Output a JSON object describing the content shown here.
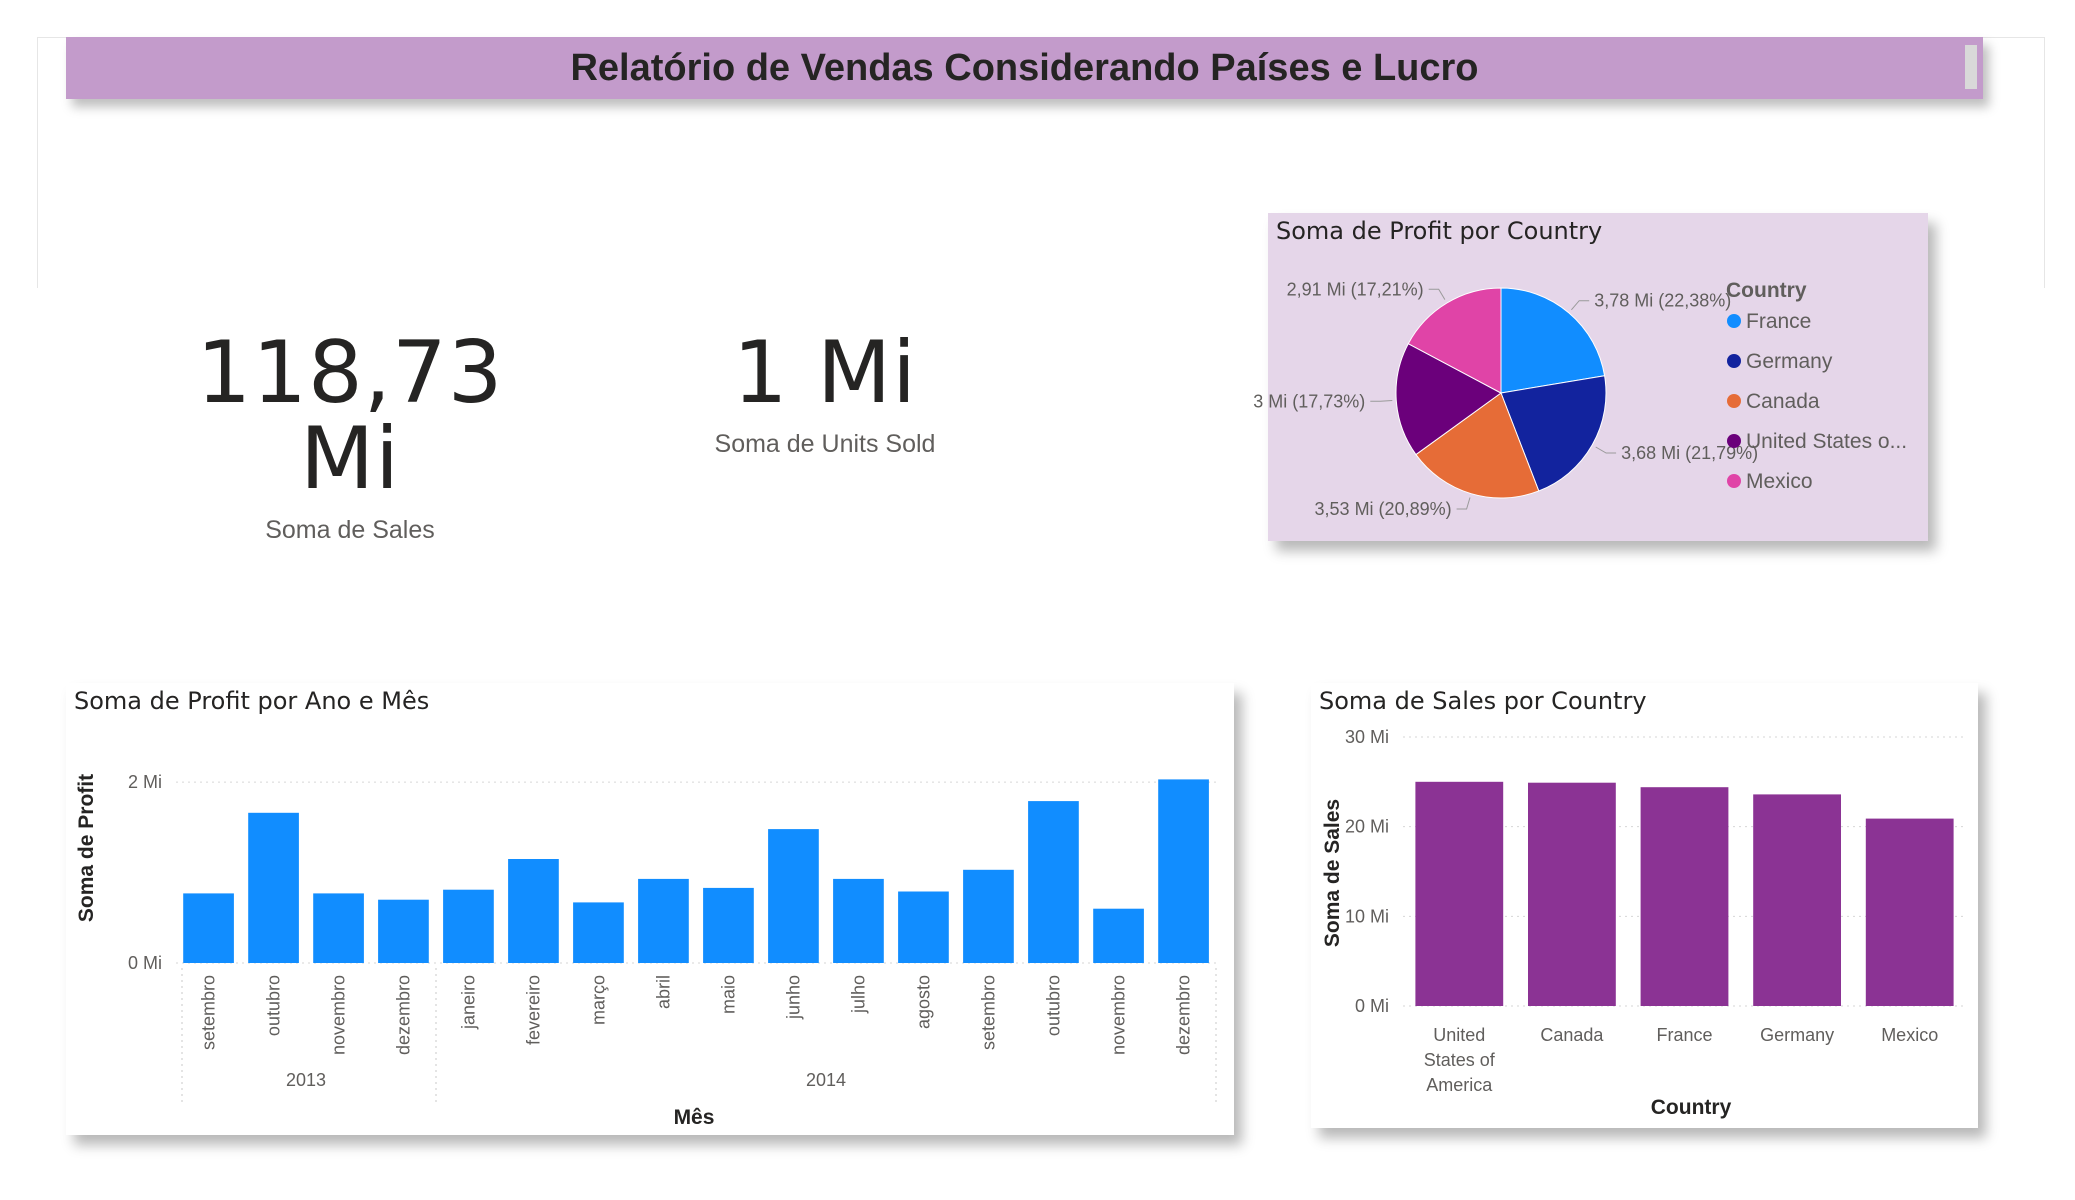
{
  "header": {
    "title": "Relatório de Vendas Considerando Países e Lucro"
  },
  "kpis": [
    {
      "value": "118,73 Mi",
      "label": "Soma de  Sales"
    },
    {
      "value": "1 Mi",
      "label": "Soma de Units Sold"
    }
  ],
  "colors": {
    "title_bar": "#c39bcb",
    "pie_card_bg": "#e5d6e9",
    "bar_blue": "#118dff",
    "bar_purple": "#8b3394"
  },
  "chart_data": [
    {
      "type": "pie",
      "title": "Soma de Profit por Country",
      "legend_title": "Country",
      "legend_placement": "right",
      "slices": [
        {
          "name": "France",
          "legend_label": "France",
          "value": 3.78,
          "pct": 22.38,
          "label": "3,78 Mi (22,38%)",
          "color": "#118dff"
        },
        {
          "name": "Germany",
          "legend_label": "Germany",
          "value": 3.68,
          "pct": 21.79,
          "label": "3,68 Mi (21,79%)",
          "color": "#12239e"
        },
        {
          "name": "Canada",
          "legend_label": "Canada",
          "value": 3.53,
          "pct": 20.89,
          "label": "3,53 Mi (20,89%)",
          "color": "#e66c37"
        },
        {
          "name": "United States of America",
          "legend_label": "United States o...",
          "value": 3.0,
          "pct": 17.73,
          "label": "3 Mi (17,73%)",
          "color": "#6b007b"
        },
        {
          "name": "Mexico",
          "legend_label": "Mexico",
          "value": 2.91,
          "pct": 17.21,
          "label": "2,91 Mi (17,21%)",
          "color": "#e044a7"
        }
      ]
    },
    {
      "type": "bar",
      "title": "Soma de Profit por Ano e Mês",
      "xlabel": "Mês",
      "ylabel": "Soma de Profit",
      "ylim": [
        0,
        2.2
      ],
      "yticks": [
        {
          "value": 0,
          "label": "0 Mi"
        },
        {
          "value": 2,
          "label": "2 Mi"
        }
      ],
      "grid": true,
      "categories": [
        "setembro",
        "outubro",
        "novembro",
        "dezembro",
        "janeiro",
        "fevereiro",
        "março",
        "abril",
        "maio",
        "junho",
        "julho",
        "agosto",
        "setembro",
        "outubro",
        "novembro",
        "dezembro"
      ],
      "values": [
        0.77,
        1.66,
        0.77,
        0.7,
        0.81,
        1.15,
        0.67,
        0.93,
        0.83,
        1.48,
        0.93,
        0.79,
        1.03,
        1.79,
        0.6,
        2.03
      ],
      "groups": [
        {
          "label": "2013",
          "count": 4
        },
        {
          "label": "2014",
          "count": 12
        }
      ]
    },
    {
      "type": "bar",
      "title": "Soma de Sales por Country",
      "xlabel": "Country",
      "ylabel": "Soma de Sales",
      "ylim": [
        0,
        30
      ],
      "yticks": [
        {
          "value": 0,
          "label": "0 Mi"
        },
        {
          "value": 10,
          "label": "10 Mi"
        },
        {
          "value": 20,
          "label": "20 Mi"
        },
        {
          "value": 30,
          "label": "30 Mi"
        }
      ],
      "grid": true,
      "categories": [
        "United States of America",
        "Canada",
        "France",
        "Germany",
        "Mexico"
      ],
      "category_lines": [
        [
          "United",
          "States of",
          "America"
        ],
        [
          "Canada"
        ],
        [
          "France"
        ],
        [
          "Germany"
        ],
        [
          "Mexico"
        ]
      ],
      "values": [
        25.0,
        24.9,
        24.4,
        23.6,
        20.9
      ]
    }
  ]
}
